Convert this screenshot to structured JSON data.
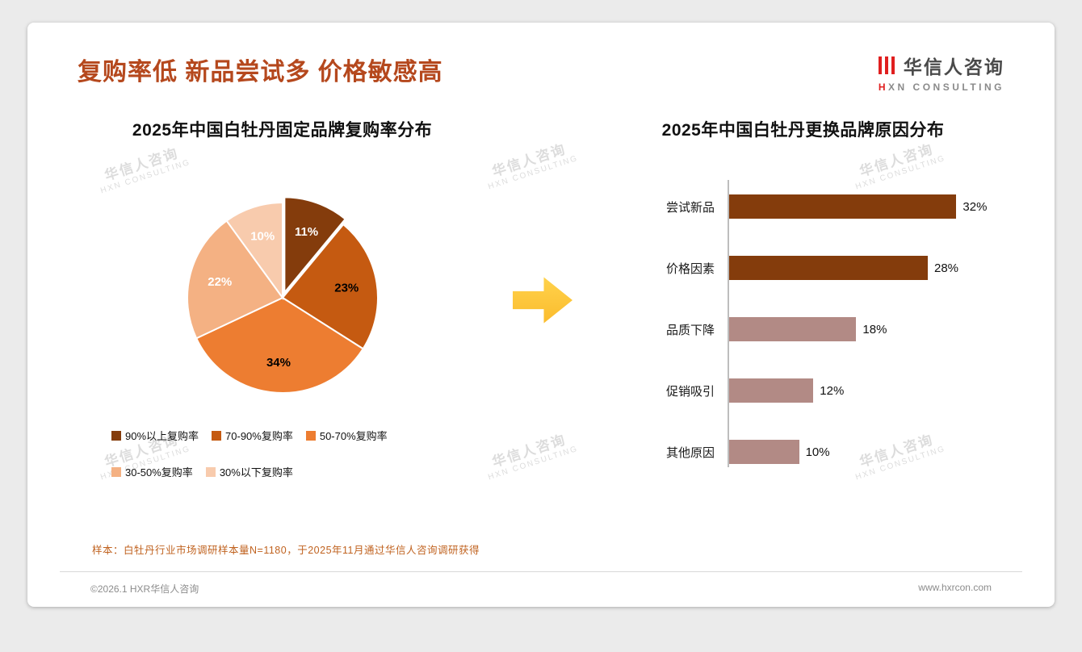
{
  "header": {
    "title": "复购率低 新品尝试多 价格敏感高",
    "logo": {
      "zh": "华信人咨询",
      "en": "HXN CONSULTING"
    }
  },
  "watermark": {
    "zh": "华信人咨询",
    "en": "HXN CONSULTING"
  },
  "footnote": "样本：白牡丹行业市场调研样本量N=1180，于2025年11月通过华信人咨询调研获得",
  "footer": {
    "copyright": "©2026.1 HXR华信人咨询",
    "website": "www.hxrcon.com"
  },
  "colors": {
    "title_accent": "#B5481D",
    "logo_red": "#E01F1F",
    "arrow": "#FBBB2C",
    "bar_dark": "#843C0C",
    "bar_light": "#B28A85",
    "footnote": "#C0621F"
  },
  "chart_data": [
    {
      "type": "pie",
      "title": "2025年中国白牡丹固定品牌复购率分布",
      "labels": [
        "90%以上复购率",
        "70-90%复购率",
        "50-70%复购率",
        "30-50%复购率",
        "30%以下复购率"
      ],
      "values": [
        11,
        23,
        34,
        22,
        10
      ],
      "unit": "%",
      "colors": [
        "#843C0C",
        "#C55A11",
        "#ED7D31",
        "#F4B183",
        "#F8CBAD"
      ],
      "label_colors": [
        "#FFFFFF",
        "#000000",
        "#000000",
        "#FFFFFF",
        "#FFFFFF"
      ],
      "legend_position": "bottom",
      "start_angle_deg": 0,
      "direction": "clockwise"
    },
    {
      "type": "bar",
      "title": "2025年中国白牡丹更换品牌原因分布",
      "orientation": "horizontal",
      "categories": [
        "尝试新品",
        "价格因素",
        "品质下降",
        "促销吸引",
        "其他原因"
      ],
      "values": [
        32,
        28,
        18,
        12,
        10
      ],
      "value_suffix": "%",
      "xlim": [
        0,
        35
      ],
      "grid": false,
      "colors": [
        "#843C0C",
        "#843C0C",
        "#B28A85",
        "#B28A85",
        "#B28A85"
      ]
    }
  ]
}
